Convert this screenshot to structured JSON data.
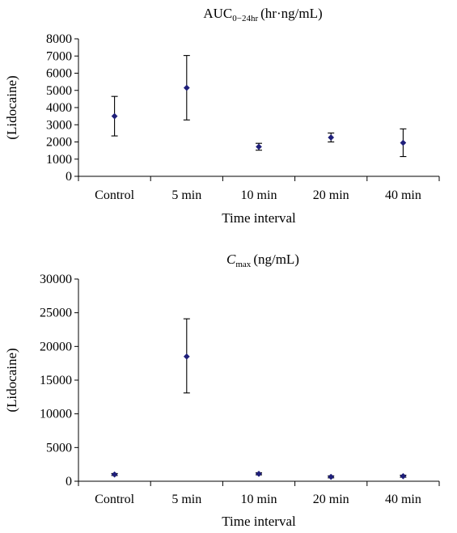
{
  "chart_data": [
    {
      "type": "scatter",
      "title_main": "AUC",
      "title_sub": "0−24hr",
      "title_unit": "(hr·ng/mL)",
      "xlabel": "Time interval",
      "ylabel": "(Lidocaine)",
      "categories": [
        "Control",
        "5 min",
        "10 min",
        "20 min",
        "40 min"
      ],
      "ylim": [
        0,
        8000
      ],
      "yticks": [
        0,
        1000,
        2000,
        3000,
        4000,
        5000,
        6000,
        7000,
        8000
      ],
      "series": [
        {
          "values": [
            3500,
            5150,
            1720,
            2260,
            1950
          ],
          "err_low": [
            2350,
            3280,
            1520,
            2000,
            1150
          ],
          "err_high": [
            4650,
            7030,
            1920,
            2520,
            2760
          ]
        }
      ],
      "grid": false,
      "marker_color": "#1f1f7a"
    },
    {
      "type": "scatter",
      "title_main": "C",
      "title_sub": "max",
      "title_unit": "(ng/mL)",
      "xlabel": "Time interval",
      "ylabel": "(Lidocaine)",
      "categories": [
        "Control",
        "5 min",
        "10 min",
        "20 min",
        "40 min"
      ],
      "ylim": [
        0,
        30000
      ],
      "yticks": [
        0,
        5000,
        10000,
        15000,
        20000,
        25000,
        30000
      ],
      "series": [
        {
          "values": [
            1000,
            18500,
            1100,
            650,
            750
          ],
          "err_low": [
            850,
            13100,
            950,
            500,
            600
          ],
          "err_high": [
            1150,
            24100,
            1250,
            800,
            900
          ]
        }
      ],
      "grid": false,
      "marker_color": "#1f1f7a"
    }
  ]
}
